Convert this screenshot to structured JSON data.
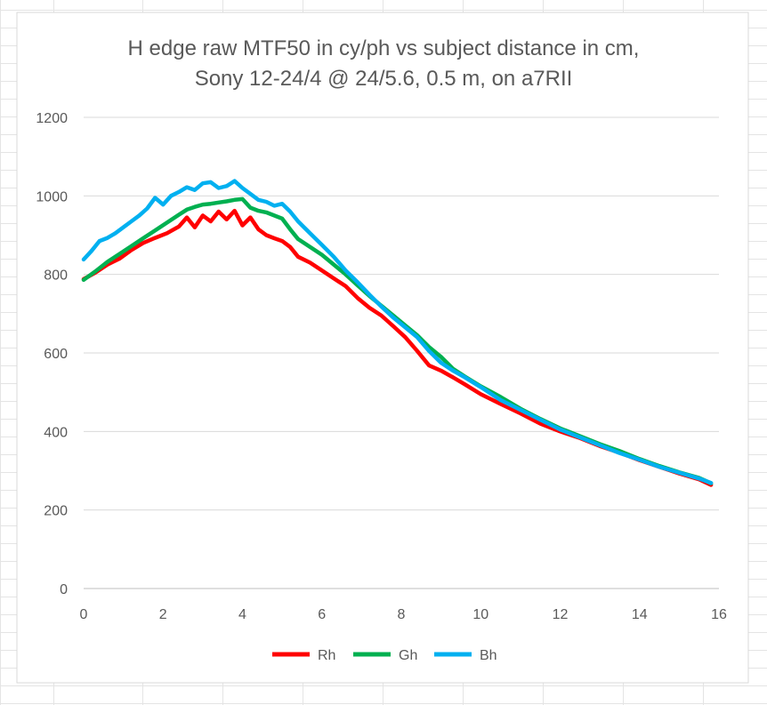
{
  "chart_data": {
    "type": "line",
    "title_lines": [
      "H edge raw MTF50 in cy/ph vs subject distance in cm,",
      "Sony 12-24/4 @ 24/5.6, 0.5 m, on a7RII"
    ],
    "xlabel": "",
    "ylabel": "",
    "xlim": [
      0,
      16
    ],
    "ylim": [
      0,
      1200
    ],
    "x_ticks": [
      "0",
      "2",
      "4",
      "6",
      "8",
      "10",
      "12",
      "14",
      "16"
    ],
    "y_ticks": [
      "0",
      "200",
      "400",
      "600",
      "800",
      "1000",
      "1200"
    ],
    "grid": "horizontal",
    "legend_position": "bottom",
    "series": [
      {
        "name": "Rh",
        "color": "#ff0000",
        "x": [
          0,
          0.3,
          0.6,
          0.9,
          1.2,
          1.5,
          1.8,
          2.1,
          2.4,
          2.6,
          2.8,
          3.0,
          3.2,
          3.4,
          3.6,
          3.8,
          4.0,
          4.2,
          4.4,
          4.6,
          4.8,
          5.0,
          5.2,
          5.4,
          5.7,
          6.0,
          6.3,
          6.6,
          6.9,
          7.2,
          7.5,
          7.8,
          8.1,
          8.4,
          8.7,
          9.0,
          9.3,
          9.6,
          10.0,
          10.5,
          11.0,
          11.5,
          12.0,
          12.5,
          13.0,
          13.5,
          14.0,
          14.5,
          15.0,
          15.5,
          15.8
        ],
        "values": [
          788,
          805,
          825,
          840,
          862,
          880,
          893,
          905,
          922,
          945,
          920,
          950,
          935,
          960,
          940,
          962,
          925,
          945,
          915,
          900,
          892,
          885,
          870,
          845,
          830,
          810,
          790,
          770,
          740,
          715,
          695,
          668,
          640,
          605,
          568,
          555,
          538,
          520,
          495,
          470,
          446,
          420,
          400,
          383,
          363,
          346,
          327,
          310,
          293,
          278,
          264
        ]
      },
      {
        "name": "Gh",
        "color": "#00b050",
        "x": [
          0,
          0.3,
          0.6,
          0.9,
          1.2,
          1.5,
          1.8,
          2.1,
          2.4,
          2.6,
          2.8,
          3.0,
          3.2,
          3.4,
          3.6,
          3.8,
          4.0,
          4.2,
          4.4,
          4.6,
          4.8,
          5.0,
          5.2,
          5.4,
          5.7,
          6.0,
          6.3,
          6.6,
          6.9,
          7.2,
          7.5,
          7.8,
          8.1,
          8.4,
          8.7,
          9.0,
          9.3,
          9.6,
          10.0,
          10.5,
          11.0,
          11.5,
          12.0,
          12.5,
          13.0,
          13.5,
          14.0,
          14.5,
          15.0,
          15.5,
          15.8
        ],
        "values": [
          786,
          808,
          832,
          852,
          872,
          892,
          912,
          932,
          952,
          965,
          972,
          978,
          980,
          983,
          986,
          990,
          992,
          970,
          962,
          958,
          950,
          942,
          915,
          890,
          870,
          850,
          825,
          800,
          772,
          745,
          720,
          695,
          670,
          645,
          615,
          590,
          560,
          540,
          515,
          488,
          458,
          432,
          408,
          388,
          368,
          350,
          330,
          312,
          296,
          282,
          268
        ]
      },
      {
        "name": "Bh",
        "color": "#00b0f0",
        "x": [
          0,
          0.2,
          0.4,
          0.6,
          0.8,
          1.0,
          1.2,
          1.4,
          1.6,
          1.8,
          2.0,
          2.2,
          2.4,
          2.6,
          2.8,
          3.0,
          3.2,
          3.4,
          3.6,
          3.8,
          4.0,
          4.2,
          4.4,
          4.6,
          4.8,
          5.0,
          5.2,
          5.4,
          5.6,
          5.8,
          6.0,
          6.3,
          6.6,
          6.9,
          7.2,
          7.5,
          7.8,
          8.1,
          8.4,
          8.7,
          9.0,
          9.3,
          9.6,
          10.0,
          10.5,
          11.0,
          11.5,
          12.0,
          12.5,
          13.0,
          13.5,
          14.0,
          14.5,
          15.0,
          15.5,
          15.8
        ],
        "values": [
          838,
          860,
          885,
          893,
          905,
          920,
          935,
          950,
          968,
          995,
          978,
          1000,
          1010,
          1022,
          1015,
          1032,
          1035,
          1020,
          1025,
          1038,
          1020,
          1005,
          990,
          985,
          975,
          980,
          960,
          935,
          915,
          895,
          875,
          845,
          810,
          780,
          748,
          718,
          690,
          665,
          640,
          605,
          575,
          555,
          538,
          513,
          480,
          455,
          430,
          405,
          385,
          365,
          345,
          328,
          310,
          295,
          280,
          269
        ]
      }
    ]
  }
}
